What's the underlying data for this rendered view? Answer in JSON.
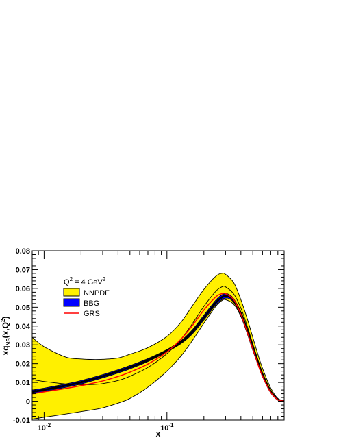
{
  "chart_data": {
    "type": "line",
    "title": "",
    "xlabel": "x",
    "ylabel": "xq_NS(x,Q^2)",
    "x_scale": "log",
    "xlim": [
      0.008,
      0.9
    ],
    "ylim": [
      -0.01,
      0.08
    ],
    "x_ticks": [
      {
        "value": 0.01,
        "label_base": "10",
        "label_exp": "-2"
      },
      {
        "value": 0.1,
        "label_base": "10",
        "label_exp": "-1"
      }
    ],
    "y_ticks": [
      "-0.01",
      "0",
      "0.01",
      "0.02",
      "0.03",
      "0.04",
      "0.05",
      "0.06",
      "0.07",
      "0.08"
    ],
    "legend": {
      "title_pre": "Q",
      "title_sup1": "2",
      "title_mid": " = 4 GeV",
      "title_sup2": "2",
      "entries": [
        "NNPDF",
        "BBG",
        "GRS"
      ],
      "placement": "top-left"
    },
    "colors": {
      "nnpdf_band": "#fff000",
      "bbg_band": "#0000ff",
      "grs_line": "#ff0000",
      "central_line": "#000000"
    },
    "series": [
      {
        "name": "NNPDF",
        "kind": "band",
        "x": [
          0.008,
          0.01,
          0.015,
          0.02,
          0.025,
          0.03,
          0.04,
          0.05,
          0.07,
          0.1,
          0.13,
          0.16,
          0.2,
          0.25,
          0.28,
          0.3,
          0.35,
          0.4,
          0.45,
          0.5,
          0.55,
          0.6,
          0.7,
          0.8,
          0.9
        ],
        "upper": [
          0.034,
          0.029,
          0.0235,
          0.0225,
          0.0222,
          0.0223,
          0.023,
          0.025,
          0.0285,
          0.0345,
          0.042,
          0.0505,
          0.0595,
          0.0665,
          0.068,
          0.0675,
          0.063,
          0.054,
          0.044,
          0.034,
          0.025,
          0.0175,
          0.007,
          0.0015,
          0.0002
        ],
        "lower": [
          -0.0095,
          -0.0085,
          -0.0068,
          -0.0055,
          -0.0045,
          -0.0035,
          -0.001,
          0.0015,
          0.0075,
          0.016,
          0.024,
          0.032,
          0.0415,
          0.0505,
          0.0535,
          0.054,
          0.0515,
          0.045,
          0.036,
          0.027,
          0.0195,
          0.013,
          0.0045,
          0.0008,
          0.0001
        ]
      },
      {
        "name": "NNPDF central",
        "kind": "line",
        "x": [
          0.008,
          0.01,
          0.015,
          0.02,
          0.025,
          0.03,
          0.04,
          0.05,
          0.07,
          0.1,
          0.13,
          0.16,
          0.2,
          0.25,
          0.28,
          0.3,
          0.35,
          0.4,
          0.45,
          0.5,
          0.55,
          0.6,
          0.7,
          0.8,
          0.9
        ],
        "y": [
          0.0115,
          0.0105,
          0.0092,
          0.0088,
          0.0089,
          0.0094,
          0.011,
          0.0133,
          0.018,
          0.0253,
          0.033,
          0.041,
          0.0505,
          0.0585,
          0.0608,
          0.0608,
          0.057,
          0.0495,
          0.04,
          0.0305,
          0.0222,
          0.0152,
          0.0058,
          0.0012,
          0.0001
        ]
      },
      {
        "name": "BBG",
        "kind": "band",
        "x": [
          0.008,
          0.01,
          0.015,
          0.02,
          0.03,
          0.04,
          0.05,
          0.07,
          0.1,
          0.13,
          0.16,
          0.2,
          0.25,
          0.28,
          0.3,
          0.32,
          0.35,
          0.4,
          0.45,
          0.5,
          0.55,
          0.6,
          0.7,
          0.8,
          0.9
        ],
        "upper": [
          0.006,
          0.007,
          0.0092,
          0.011,
          0.0142,
          0.0168,
          0.019,
          0.0227,
          0.0275,
          0.0322,
          0.0378,
          0.0458,
          0.0538,
          0.0566,
          0.0572,
          0.0568,
          0.0545,
          0.0475,
          0.0385,
          0.0295,
          0.0213,
          0.0145,
          0.0053,
          0.0011,
          0.0001
        ],
        "lower": [
          0.004,
          0.0052,
          0.0074,
          0.0092,
          0.0124,
          0.015,
          0.0172,
          0.0211,
          0.0262,
          0.0306,
          0.0356,
          0.0432,
          0.0512,
          0.054,
          0.0548,
          0.0546,
          0.0525,
          0.0458,
          0.0371,
          0.0283,
          0.0203,
          0.0137,
          0.0049,
          0.0009,
          0.0001
        ]
      },
      {
        "name": "GRS",
        "kind": "line",
        "x": [
          0.008,
          0.01,
          0.015,
          0.02,
          0.03,
          0.04,
          0.05,
          0.07,
          0.1,
          0.13,
          0.16,
          0.2,
          0.25,
          0.28,
          0.3,
          0.35,
          0.4,
          0.45,
          0.5,
          0.55,
          0.6,
          0.7,
          0.8,
          0.9
        ],
        "y": [
          0.004,
          0.005,
          0.0068,
          0.0083,
          0.0108,
          0.0132,
          0.0155,
          0.0198,
          0.0262,
          0.033,
          0.04,
          0.0485,
          0.0555,
          0.0572,
          0.0572,
          0.054,
          0.0462,
          0.0368,
          0.0278,
          0.0198,
          0.0133,
          0.0047,
          0.0008,
          0.0001
        ]
      }
    ]
  }
}
